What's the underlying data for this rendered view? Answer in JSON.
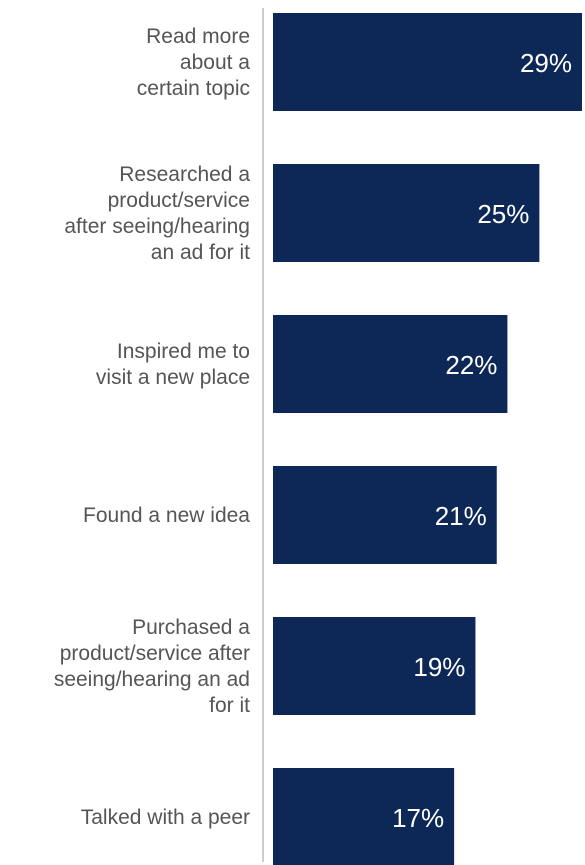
{
  "chart_data": {
    "type": "bar",
    "orientation": "horizontal",
    "categories": [
      [
        "Read more",
        "about a",
        "certain topic"
      ],
      [
        "Researched a",
        "product/service",
        "after seeing/hearing",
        "an ad for it"
      ],
      [
        "Inspired me to",
        "visit a new place"
      ],
      [
        "Found a new idea"
      ],
      [
        "Purchased a",
        "product/service after",
        "seeing/hearing an ad",
        "for it"
      ],
      [
        "Talked with a peer"
      ]
    ],
    "values": [
      29,
      25,
      22,
      21,
      19,
      17
    ],
    "value_labels": [
      "29%",
      "25%",
      "22%",
      "21%",
      "19%",
      "17%"
    ],
    "xlim": [
      0,
      29
    ],
    "bar_color": "#0d2857",
    "value_label_color": "#ffffff",
    "category_label_color": "#555555",
    "axis_line_color": "#cccccc",
    "grid": false,
    "legend": "none"
  }
}
